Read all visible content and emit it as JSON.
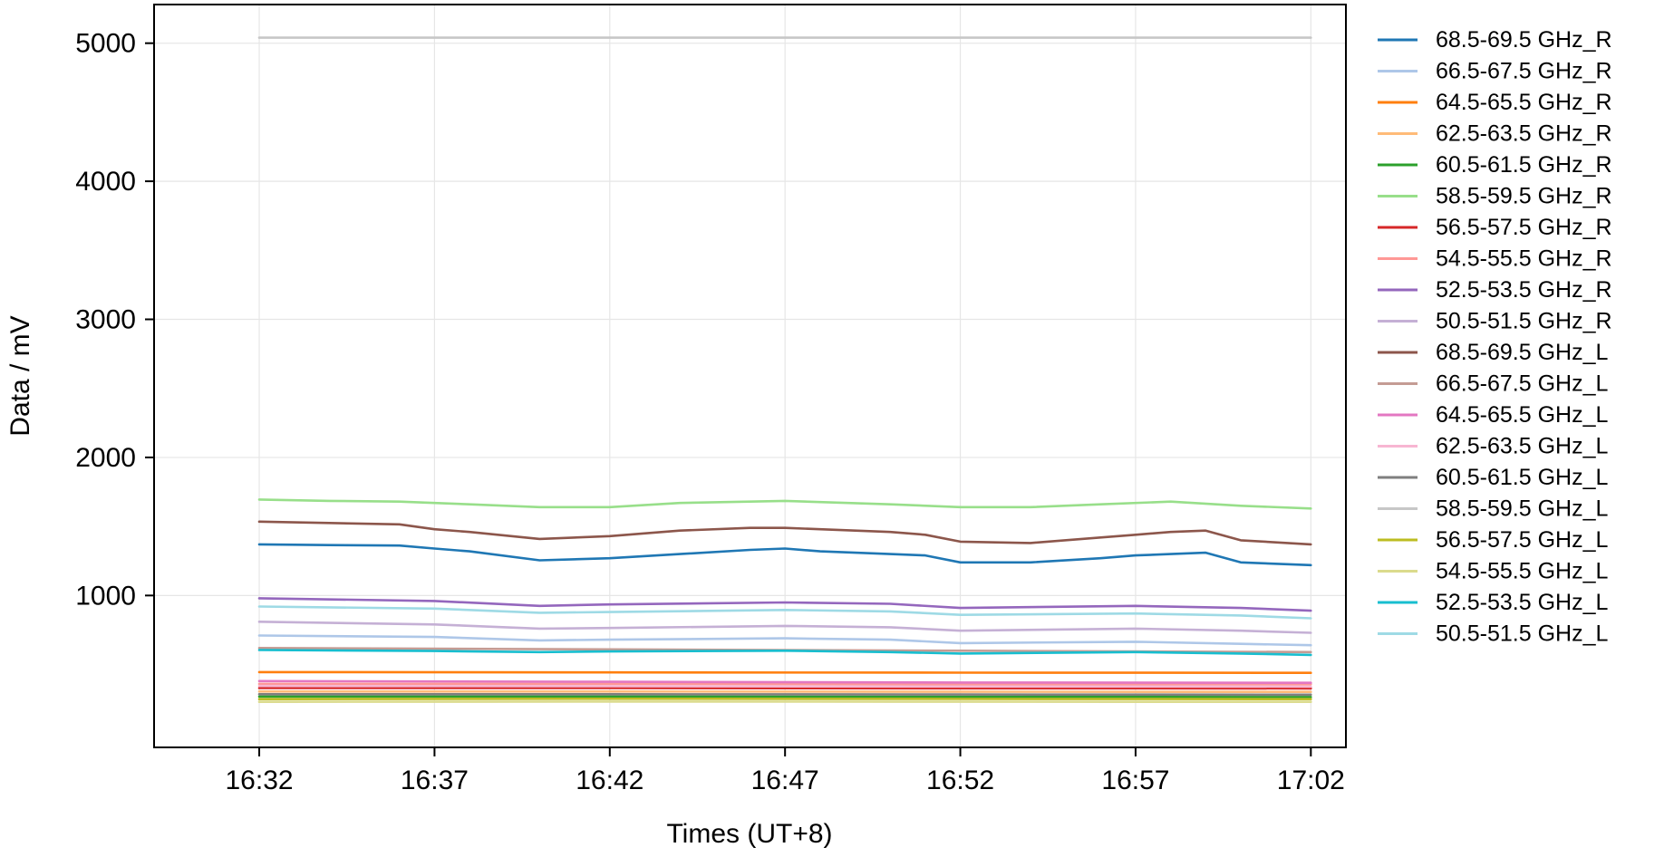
{
  "chart_data": {
    "type": "line",
    "title": "",
    "xlabel": "Times (UT+8)",
    "ylabel": "Data / mV",
    "x_range": [
      "16:29",
      "17:03"
    ],
    "x_ticks": [
      "16:32",
      "16:37",
      "16:42",
      "16:47",
      "16:52",
      "16:57",
      "17:02"
    ],
    "ylim": [
      -100,
      5280
    ],
    "y_ticks": [
      1000,
      2000,
      3000,
      4000,
      5000
    ],
    "grid": true,
    "legend_position": "outside-right",
    "series": [
      {
        "name": "68.5-69.5 GHz_R",
        "color": "#1f77b4",
        "x": [
          "16:32",
          "16:34",
          "16:36",
          "16:37",
          "16:38",
          "16:40",
          "16:42",
          "16:44",
          "16:46",
          "16:47",
          "16:48",
          "16:50",
          "16:51",
          "16:52",
          "16:54",
          "16:56",
          "16:57",
          "16:58",
          "16:59",
          "17:00",
          "17:02"
        ],
        "values": [
          1370,
          1365,
          1362,
          1340,
          1320,
          1255,
          1270,
          1300,
          1330,
          1340,
          1320,
          1300,
          1290,
          1240,
          1240,
          1270,
          1290,
          1300,
          1310,
          1240,
          1220
        ]
      },
      {
        "name": "66.5-67.5 GHz_R",
        "color": "#aec7e8",
        "x": [
          "16:32",
          "16:37",
          "16:40",
          "16:42",
          "16:47",
          "16:50",
          "16:52",
          "16:57",
          "17:00",
          "17:02"
        ],
        "values": [
          710,
          700,
          675,
          680,
          690,
          680,
          655,
          665,
          650,
          640
        ]
      },
      {
        "name": "64.5-65.5 GHz_R",
        "color": "#ff7f0e",
        "x": [
          "16:32",
          "16:42",
          "16:52",
          "17:02"
        ],
        "values": [
          445,
          443,
          441,
          440
        ]
      },
      {
        "name": "62.5-63.5 GHz_R",
        "color": "#ffbb78",
        "x": [
          "16:32",
          "16:42",
          "16:52",
          "17:02"
        ],
        "values": [
          305,
          305,
          303,
          302
        ]
      },
      {
        "name": "60.5-61.5 GHz_R",
        "color": "#2ca02c",
        "x": [
          "16:32",
          "16:42",
          "16:52",
          "17:02"
        ],
        "values": [
          268,
          268,
          266,
          265
        ]
      },
      {
        "name": "58.5-59.5 GHz_R",
        "color": "#98df8a",
        "x": [
          "16:32",
          "16:34",
          "16:36",
          "16:37",
          "16:38",
          "16:40",
          "16:42",
          "16:44",
          "16:47",
          "16:50",
          "16:52",
          "16:54",
          "16:56",
          "16:58",
          "17:00",
          "17:02"
        ],
        "values": [
          1695,
          1685,
          1680,
          1670,
          1660,
          1640,
          1640,
          1670,
          1685,
          1660,
          1640,
          1640,
          1660,
          1680,
          1650,
          1630
        ]
      },
      {
        "name": "56.5-57.5 GHz_R",
        "color": "#d62728",
        "x": [
          "16:32",
          "16:42",
          "16:52",
          "17:02"
        ],
        "values": [
          330,
          330,
          328,
          327
        ]
      },
      {
        "name": "54.5-55.5 GHz_R",
        "color": "#ff9896",
        "x": [
          "16:32",
          "16:42",
          "16:52",
          "17:02"
        ],
        "values": [
          360,
          360,
          358,
          357
        ]
      },
      {
        "name": "52.5-53.5 GHz_R",
        "color": "#9467bd",
        "x": [
          "16:32",
          "16:37",
          "16:40",
          "16:42",
          "16:47",
          "16:50",
          "16:52",
          "16:57",
          "17:00",
          "17:02"
        ],
        "values": [
          980,
          960,
          925,
          935,
          950,
          940,
          910,
          925,
          910,
          890
        ]
      },
      {
        "name": "50.5-51.5 GHz_R",
        "color": "#c5b0d5",
        "x": [
          "16:32",
          "16:37",
          "16:40",
          "16:42",
          "16:47",
          "16:50",
          "16:52",
          "16:57",
          "17:00",
          "17:02"
        ],
        "values": [
          810,
          790,
          760,
          765,
          780,
          770,
          745,
          760,
          745,
          730
        ]
      },
      {
        "name": "68.5-69.5 GHz_L",
        "color": "#8c564b",
        "x": [
          "16:32",
          "16:34",
          "16:36",
          "16:37",
          "16:38",
          "16:40",
          "16:42",
          "16:44",
          "16:46",
          "16:47",
          "16:48",
          "16:50",
          "16:51",
          "16:52",
          "16:54",
          "16:56",
          "16:57",
          "16:58",
          "16:59",
          "17:00",
          "17:02"
        ],
        "values": [
          1535,
          1525,
          1515,
          1480,
          1460,
          1410,
          1430,
          1470,
          1490,
          1490,
          1480,
          1460,
          1440,
          1390,
          1380,
          1420,
          1440,
          1460,
          1470,
          1400,
          1370
        ]
      },
      {
        "name": "66.5-67.5 GHz_L",
        "color": "#c49c94",
        "x": [
          "16:32",
          "16:42",
          "16:52",
          "17:02"
        ],
        "values": [
          620,
          610,
          600,
          590
        ]
      },
      {
        "name": "64.5-65.5 GHz_L",
        "color": "#e377c2",
        "x": [
          "16:32",
          "16:42",
          "16:52",
          "17:02"
        ],
        "values": [
          380,
          375,
          370,
          368
        ]
      },
      {
        "name": "62.5-63.5 GHz_L",
        "color": "#f7b6d2",
        "x": [
          "16:32",
          "16:42",
          "16:52",
          "17:02"
        ],
        "values": [
          345,
          343,
          341,
          340
        ]
      },
      {
        "name": "60.5-61.5 GHz_L",
        "color": "#7f7f7f",
        "x": [
          "16:32",
          "16:42",
          "16:52",
          "17:02"
        ],
        "values": [
          285,
          285,
          283,
          282
        ]
      },
      {
        "name": "58.5-59.5 GHz_L",
        "color": "#c7c7c7",
        "x": [
          "16:32",
          "16:42",
          "16:52",
          "17:02"
        ],
        "values": [
          5040,
          5040,
          5040,
          5040
        ]
      },
      {
        "name": "56.5-57.5 GHz_L",
        "color": "#bcbd22",
        "x": [
          "16:32",
          "16:42",
          "16:52",
          "17:02"
        ],
        "values": [
          250,
          252,
          251,
          250
        ]
      },
      {
        "name": "54.5-55.5 GHz_L",
        "color": "#dbdb8d",
        "x": [
          "16:32",
          "16:42",
          "16:52",
          "17:02"
        ],
        "values": [
          230,
          232,
          231,
          230
        ]
      },
      {
        "name": "52.5-53.5 GHz_L",
        "color": "#17becf",
        "x": [
          "16:32",
          "16:37",
          "16:40",
          "16:42",
          "16:47",
          "16:50",
          "16:52",
          "16:57",
          "17:00",
          "17:02"
        ],
        "values": [
          605,
          598,
          590,
          595,
          600,
          590,
          580,
          590,
          580,
          570
        ]
      },
      {
        "name": "50.5-51.5 GHz_L",
        "color": "#9edae5",
        "x": [
          "16:32",
          "16:37",
          "16:40",
          "16:42",
          "16:47",
          "16:50",
          "16:52",
          "16:57",
          "17:00",
          "17:02"
        ],
        "values": [
          920,
          905,
          875,
          880,
          895,
          885,
          860,
          870,
          855,
          835
        ]
      }
    ]
  }
}
